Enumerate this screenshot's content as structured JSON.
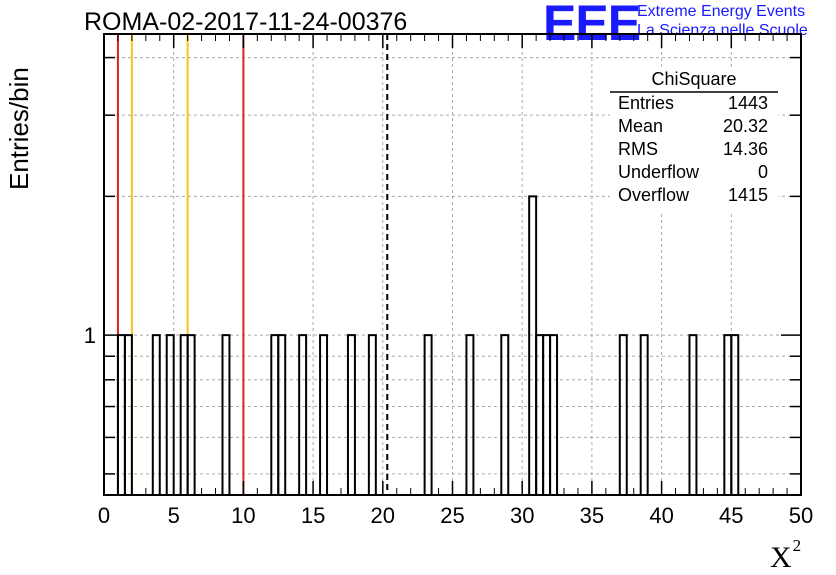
{
  "header": {
    "title": "ROMA-02-2017-11-24-00376",
    "logo": "EEE",
    "brand_line1": "Extreme Energy Events",
    "brand_line2": "La Scienza nelle Scuole"
  },
  "chart_data": {
    "type": "bar",
    "title": "ROMA-02-2017-11-24-00376",
    "xlabel": "X",
    "xlabel_superscript": "2",
    "ylabel": "Entries/bin",
    "xlim": [
      0,
      50
    ],
    "ylim": [
      0.45,
      4.5
    ],
    "yscale": "log",
    "grid": true,
    "x_ticks": [
      0,
      5,
      10,
      15,
      20,
      25,
      30,
      35,
      40,
      45,
      50
    ],
    "y_tick_labels": [
      {
        "value": 1,
        "label": "1"
      }
    ],
    "bin_width": 0.5,
    "bins": [
      {
        "x": 1.0,
        "count": 1
      },
      {
        "x": 1.5,
        "count": 1
      },
      {
        "x": 3.5,
        "count": 1
      },
      {
        "x": 4.5,
        "count": 1
      },
      {
        "x": 5.5,
        "count": 1
      },
      {
        "x": 6.0,
        "count": 1
      },
      {
        "x": 8.5,
        "count": 1
      },
      {
        "x": 12.0,
        "count": 1
      },
      {
        "x": 12.5,
        "count": 1
      },
      {
        "x": 14.0,
        "count": 1
      },
      {
        "x": 15.5,
        "count": 1
      },
      {
        "x": 17.5,
        "count": 1
      },
      {
        "x": 19.0,
        "count": 1
      },
      {
        "x": 23.0,
        "count": 1
      },
      {
        "x": 26.0,
        "count": 1
      },
      {
        "x": 28.5,
        "count": 1
      },
      {
        "x": 30.5,
        "count": 2
      },
      {
        "x": 31.0,
        "count": 1
      },
      {
        "x": 31.5,
        "count": 1
      },
      {
        "x": 32.0,
        "count": 1
      },
      {
        "x": 37.0,
        "count": 1
      },
      {
        "x": 38.5,
        "count": 1
      },
      {
        "x": 42.0,
        "count": 1
      },
      {
        "x": 44.5,
        "count": 1
      },
      {
        "x": 45.0,
        "count": 1
      }
    ],
    "vertical_lines": [
      {
        "x": 1.0,
        "color": "#dd2222",
        "style": "solid"
      },
      {
        "x": 2.0,
        "color": "#f5c518",
        "style": "solid"
      },
      {
        "x": 6.0,
        "color": "#f5c518",
        "style": "solid"
      },
      {
        "x": 10.0,
        "color": "#dd2222",
        "style": "solid"
      },
      {
        "x": 20.32,
        "color": "#000000",
        "style": "dashed"
      }
    ],
    "stats_box": {
      "title": "ChiSquare",
      "rows": [
        {
          "label": "Entries",
          "value": "1443"
        },
        {
          "label": "Mean",
          "value": "20.32"
        },
        {
          "label": "RMS",
          "value": "14.36"
        },
        {
          "label": "Underflow",
          "value": "0"
        },
        {
          "label": "Overflow",
          "value": "1415"
        }
      ]
    }
  }
}
